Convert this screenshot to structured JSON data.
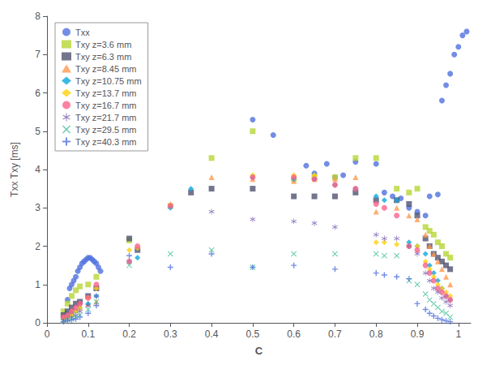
{
  "chart_data": {
    "type": "scatter",
    "xlabel": "C",
    "ylabel": "Txx Txy [ms]",
    "xlim": [
      0,
      1.03
    ],
    "ylim": [
      0,
      8
    ],
    "xticks": [
      0,
      0.1,
      0.2,
      0.3,
      0.4,
      0.5,
      0.6,
      0.7,
      0.8,
      0.9,
      1
    ],
    "yticks": [
      0,
      1,
      2,
      3,
      4,
      5,
      6,
      7,
      8
    ],
    "grid": false,
    "legend": "upper left",
    "series": [
      {
        "name": "Txx",
        "marker": "circle",
        "x": [
          0.04,
          0.045,
          0.05,
          0.055,
          0.06,
          0.065,
          0.07,
          0.075,
          0.08,
          0.085,
          0.09,
          0.095,
          0.1,
          0.105,
          0.11,
          0.115,
          0.12,
          0.125,
          0.13,
          0.5,
          0.55,
          0.63,
          0.65,
          0.68,
          0.7,
          0.72,
          0.75,
          0.8,
          0.82,
          0.84,
          0.86,
          0.88,
          0.9,
          0.92,
          0.93,
          0.95,
          0.96,
          0.97,
          0.98,
          0.99,
          1.0,
          1.01,
          1.02
        ],
        "values": [
          0.15,
          0.25,
          0.6,
          0.9,
          1.0,
          1.1,
          1.2,
          1.35,
          1.45,
          1.55,
          1.6,
          1.65,
          1.7,
          1.7,
          1.65,
          1.6,
          1.55,
          1.45,
          1.35,
          5.3,
          4.9,
          4.1,
          3.9,
          4.15,
          3.8,
          3.85,
          4.2,
          4.15,
          3.4,
          3.3,
          3.25,
          3.0,
          2.9,
          2.8,
          3.3,
          3.35,
          5.8,
          6.2,
          6.5,
          7.0,
          7.2,
          7.5,
          7.6
        ]
      },
      {
        "name": "Txy z=3.6 mm",
        "marker": "square",
        "x": [
          0.04,
          0.05,
          0.06,
          0.07,
          0.08,
          0.1,
          0.12,
          0.2,
          0.3,
          0.4,
          0.5,
          0.6,
          0.65,
          0.7,
          0.75,
          0.8,
          0.85,
          0.88,
          0.9,
          0.92,
          0.93,
          0.94,
          0.95,
          0.96,
          0.97,
          0.98
        ],
        "values": [
          0.3,
          0.5,
          0.7,
          0.85,
          0.95,
          1.0,
          1.2,
          2.15,
          3.05,
          4.3,
          5.0,
          3.75,
          3.8,
          3.8,
          4.3,
          4.3,
          3.5,
          3.4,
          3.5,
          2.5,
          2.4,
          2.3,
          2.1,
          2.0,
          1.8,
          1.7
        ]
      },
      {
        "name": "Txy z=6.3 mm",
        "marker": "square",
        "x": [
          0.04,
          0.05,
          0.06,
          0.07,
          0.08,
          0.1,
          0.12,
          0.2,
          0.22,
          0.35,
          0.4,
          0.5,
          0.6,
          0.65,
          0.7,
          0.75,
          0.8,
          0.85,
          0.88,
          0.9,
          0.92,
          0.93,
          0.94,
          0.95,
          0.96,
          0.97,
          0.98
        ],
        "values": [
          0.2,
          0.3,
          0.4,
          0.5,
          0.55,
          0.7,
          0.9,
          2.2,
          1.9,
          3.4,
          3.5,
          3.5,
          3.3,
          3.3,
          3.3,
          3.4,
          3.2,
          3.2,
          3.1,
          2.8,
          2.2,
          2.0,
          1.8,
          1.7,
          1.6,
          1.5,
          1.4
        ]
      },
      {
        "name": "Txy z=8.45 mm",
        "marker": "triangle",
        "x": [
          0.04,
          0.05,
          0.06,
          0.07,
          0.08,
          0.1,
          0.12,
          0.3,
          0.4,
          0.5,
          0.6,
          0.65,
          0.7,
          0.75,
          0.8,
          0.85,
          0.88,
          0.9,
          0.92,
          0.93,
          0.94,
          0.95,
          0.96,
          0.97,
          0.98
        ],
        "values": [
          0.15,
          0.2,
          0.3,
          0.35,
          0.4,
          0.5,
          0.55,
          3.1,
          3.8,
          3.75,
          3.7,
          3.75,
          3.75,
          3.8,
          2.9,
          3.0,
          2.8,
          2.7,
          2.3,
          2.0,
          1.8,
          1.6,
          1.4,
          1.2,
          1.0
        ]
      },
      {
        "name": "Txy z=10.75 mm",
        "marker": "diamond",
        "x": [
          0.04,
          0.05,
          0.06,
          0.07,
          0.08,
          0.1,
          0.12,
          0.2,
          0.22,
          0.3,
          0.35,
          0.5,
          0.6,
          0.65,
          0.7,
          0.75,
          0.8,
          0.82,
          0.85,
          0.88,
          0.9,
          0.92,
          0.93,
          0.94,
          0.95,
          0.96,
          0.97,
          0.98
        ],
        "values": [
          0.1,
          0.2,
          0.25,
          0.3,
          0.4,
          0.5,
          0.7,
          1.6,
          1.7,
          3.0,
          3.5,
          3.8,
          3.75,
          3.75,
          3.6,
          3.5,
          3.3,
          3.2,
          3.2,
          2.1,
          2.0,
          1.8,
          1.5,
          1.3,
          1.1,
          0.9,
          0.7,
          0.6
        ]
      },
      {
        "name": "Txy z=13.7 mm",
        "marker": "diamond",
        "x": [
          0.04,
          0.05,
          0.06,
          0.07,
          0.08,
          0.1,
          0.12,
          0.2,
          0.22,
          0.5,
          0.6,
          0.65,
          0.8,
          0.82,
          0.85,
          0.88,
          0.9,
          0.92,
          0.93,
          0.94,
          0.95,
          0.96,
          0.97,
          0.98
        ],
        "values": [
          0.1,
          0.15,
          0.2,
          0.3,
          0.4,
          0.65,
          0.9,
          1.9,
          1.95,
          3.85,
          3.85,
          3.85,
          2.1,
          2.1,
          2.05,
          2.0,
          2.0,
          1.6,
          1.4,
          1.2,
          1.0,
          0.9,
          0.8,
          0.7
        ]
      },
      {
        "name": "Txy z=16.7 mm",
        "marker": "circle",
        "x": [
          0.04,
          0.05,
          0.06,
          0.07,
          0.08,
          0.1,
          0.12,
          0.2,
          0.22,
          0.3,
          0.5,
          0.6,
          0.65,
          0.7,
          0.75,
          0.8,
          0.82,
          0.85,
          0.88,
          0.9,
          0.92,
          0.93,
          0.94,
          0.95,
          0.96,
          0.97,
          0.98
        ],
        "values": [
          0.15,
          0.2,
          0.3,
          0.4,
          0.5,
          0.65,
          1.0,
          1.6,
          2.0,
          3.05,
          3.8,
          3.8,
          3.75,
          3.6,
          3.5,
          3.1,
          3.0,
          2.8,
          2.0,
          1.9,
          1.5,
          1.3,
          1.1,
          0.9,
          0.8,
          0.7,
          0.6
        ]
      },
      {
        "name": "Txy z=21.7 mm",
        "marker": "asterisk",
        "x": [
          0.04,
          0.05,
          0.06,
          0.07,
          0.08,
          0.1,
          0.12,
          0.4,
          0.5,
          0.6,
          0.65,
          0.7,
          0.8,
          0.82,
          0.85,
          0.88,
          0.9,
          0.92,
          0.93,
          0.94,
          0.95,
          0.96,
          0.97,
          0.98
        ],
        "values": [
          0.05,
          0.1,
          0.15,
          0.2,
          0.3,
          0.45,
          0.7,
          2.9,
          2.7,
          2.65,
          2.6,
          2.5,
          2.3,
          2.2,
          2.2,
          2.0,
          1.8,
          1.3,
          1.1,
          0.9,
          0.8,
          0.65,
          0.55,
          0.45
        ]
      },
      {
        "name": "Txy z=29.5 mm",
        "marker": "x",
        "x": [
          0.04,
          0.05,
          0.06,
          0.07,
          0.08,
          0.1,
          0.12,
          0.2,
          0.3,
          0.4,
          0.5,
          0.6,
          0.7,
          0.8,
          0.82,
          0.85,
          0.88,
          0.9,
          0.92,
          0.93,
          0.94,
          0.95,
          0.96,
          0.97,
          0.98
        ],
        "values": [
          0.05,
          0.08,
          0.1,
          0.15,
          0.2,
          0.35,
          0.55,
          1.5,
          1.8,
          1.9,
          1.45,
          1.8,
          1.8,
          1.8,
          1.75,
          1.75,
          1.1,
          1.0,
          0.75,
          0.6,
          0.5,
          0.4,
          0.3,
          0.25,
          0.15
        ]
      },
      {
        "name": "Txy z=40.3 mm",
        "marker": "plus",
        "x": [
          0.04,
          0.05,
          0.06,
          0.07,
          0.08,
          0.1,
          0.12,
          0.2,
          0.3,
          0.4,
          0.5,
          0.6,
          0.7,
          0.8,
          0.82,
          0.85,
          0.88,
          0.9,
          0.92,
          0.93,
          0.94,
          0.95,
          0.96,
          0.97,
          0.98
        ],
        "values": [
          0.03,
          0.05,
          0.08,
          0.1,
          0.15,
          0.25,
          0.45,
          1.75,
          1.45,
          1.8,
          1.45,
          1.5,
          1.4,
          1.3,
          1.25,
          1.2,
          1.15,
          0.5,
          0.35,
          0.25,
          0.18,
          0.12,
          0.08,
          0.05,
          0.03
        ]
      }
    ]
  }
}
